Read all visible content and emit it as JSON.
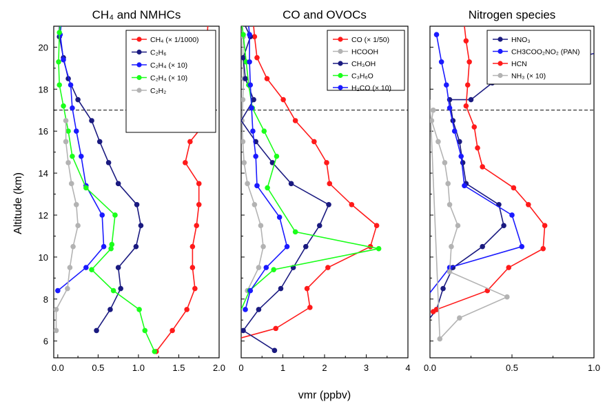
{
  "figure": {
    "ylabel": "Altitude (km)",
    "xlabel": "vmr (ppbv)"
  },
  "chart_data": [
    {
      "type": "line",
      "title": "CH₄ and NMHCs",
      "xlim": [
        -0.05,
        2.0
      ],
      "ylim": [
        5.2,
        21.0
      ],
      "xticks": [
        "0.0",
        "0.5",
        "1.0",
        "1.5",
        "2.0"
      ],
      "xtick_values": [
        0.0,
        0.5,
        1.0,
        1.5,
        2.0
      ],
      "yticks": [
        "6",
        "8",
        "10",
        "12",
        "14",
        "16",
        "18",
        "20"
      ],
      "ytick_values": [
        6,
        8,
        10,
        12,
        14,
        16,
        18,
        20
      ],
      "reference_line_y": 17.0,
      "legend_position": "top-right",
      "series": [
        {
          "name": "CH₄ (× 1/1000)",
          "color": "#ff1a1a",
          "points": [
            [
              1.22,
              5.5
            ],
            [
              1.42,
              6.5
            ],
            [
              1.6,
              7.5
            ],
            [
              1.7,
              8.5
            ],
            [
              1.67,
              9.5
            ],
            [
              1.67,
              10.5
            ],
            [
              1.72,
              11.5
            ],
            [
              1.75,
              12.5
            ],
            [
              1.75,
              13.5
            ],
            [
              1.58,
              14.5
            ],
            [
              1.64,
              15.5
            ],
            [
              1.85,
              16.5
            ],
            [
              1.8,
              17.5
            ],
            [
              1.86,
              21.0
            ]
          ]
        },
        {
          "name": "C₂H₆",
          "color": "#1a1a80",
          "points": [
            [
              0.48,
              6.5
            ],
            [
              0.65,
              7.5
            ],
            [
              0.78,
              8.5
            ],
            [
              0.75,
              9.5
            ],
            [
              0.97,
              10.5
            ],
            [
              1.03,
              11.5
            ],
            [
              0.98,
              12.5
            ],
            [
              0.75,
              13.5
            ],
            [
              0.63,
              14.5
            ],
            [
              0.52,
              15.5
            ],
            [
              0.42,
              16.5
            ],
            [
              0.25,
              17.5
            ],
            [
              0.13,
              18.5
            ],
            [
              0.07,
              19.5
            ],
            [
              0.02,
              20.5
            ],
            [
              0.02,
              21.0
            ]
          ]
        },
        {
          "name": "C₂H₄ (× 10)",
          "color": "#1a1aff",
          "points": [
            [
              0.0,
              8.4
            ],
            [
              0.35,
              9.5
            ],
            [
              0.57,
              10.5
            ],
            [
              0.55,
              12.0
            ],
            [
              0.35,
              13.4
            ],
            [
              0.29,
              14.8
            ],
            [
              0.23,
              16.0
            ],
            [
              0.18,
              17.1
            ],
            [
              0.16,
              18.2
            ],
            [
              0.07,
              19.4
            ],
            [
              0.03,
              20.6
            ],
            [
              0.04,
              21.0
            ]
          ]
        },
        {
          "name": "C₂H₄ (× 10)",
          "color": "#1aff1a",
          "points": [
            [
              1.2,
              5.5
            ],
            [
              1.08,
              6.5
            ],
            [
              1.01,
              7.5
            ],
            [
              0.69,
              8.4
            ],
            [
              0.42,
              9.4
            ],
            [
              0.66,
              10.4
            ],
            [
              0.67,
              10.6
            ],
            [
              0.71,
              12.0
            ],
            [
              0.35,
              13.3
            ],
            [
              0.18,
              14.8
            ],
            [
              0.13,
              16.0
            ],
            [
              0.07,
              17.2
            ],
            [
              0.02,
              18.2
            ],
            [
              0.01,
              19.3
            ],
            [
              0.02,
              20.7
            ],
            [
              0.03,
              21.0
            ]
          ]
        },
        {
          "name": "C₂H₂",
          "color": "#b3b3b3",
          "points": [
            [
              -0.02,
              6.5
            ],
            [
              -0.02,
              7.5
            ],
            [
              0.12,
              8.5
            ],
            [
              0.15,
              9.5
            ],
            [
              0.19,
              10.5
            ],
            [
              0.25,
              11.5
            ],
            [
              0.23,
              12.5
            ],
            [
              0.17,
              13.5
            ],
            [
              0.13,
              14.5
            ],
            [
              0.1,
              15.5
            ],
            [
              0.1,
              16.5
            ]
          ]
        }
      ]
    },
    {
      "type": "line",
      "title": "CO and OVOCs",
      "xlim": [
        0.0,
        4.0
      ],
      "ylim": [
        5.2,
        21.0
      ],
      "xticks": [
        "0",
        "1",
        "2",
        "3",
        "4"
      ],
      "xtick_values": [
        0,
        1,
        2,
        3,
        4
      ],
      "yticks": [
        "6",
        "8",
        "10",
        "12",
        "14",
        "16",
        "18",
        "20"
      ],
      "ytick_values": [
        6,
        8,
        10,
        12,
        14,
        16,
        18,
        20
      ],
      "reference_line_y": 17.0,
      "legend_position": "top-right",
      "series": [
        {
          "name": "CO (× 1/50)",
          "color": "#ff1a1a",
          "points": [
            [
              0.0,
              6.15
            ],
            [
              0.83,
              6.6
            ],
            [
              1.65,
              7.6
            ],
            [
              1.58,
              8.5
            ],
            [
              2.08,
              9.5
            ],
            [
              3.1,
              10.5
            ],
            [
              3.25,
              11.5
            ],
            [
              2.65,
              12.5
            ],
            [
              2.12,
              13.5
            ],
            [
              2.05,
              14.5
            ],
            [
              1.75,
              15.5
            ],
            [
              1.3,
              16.5
            ],
            [
              1.01,
              17.5
            ],
            [
              0.62,
              18.5
            ],
            [
              0.38,
              19.5
            ],
            [
              0.32,
              20.5
            ],
            [
              0.3,
              21.0
            ]
          ]
        },
        {
          "name": "HCOOH",
          "color": "#b3b3b3",
          "points": [
            [
              0.15,
              8.4
            ],
            [
              0.42,
              9.5
            ],
            [
              0.53,
              10.5
            ],
            [
              0.47,
              11.5
            ],
            [
              0.32,
              12.5
            ],
            [
              0.15,
              13.5
            ],
            [
              0.07,
              14.5
            ],
            [
              0.04,
              15.5
            ],
            [
              0.02,
              16.5
            ],
            [
              0.04,
              17.5
            ],
            [
              0.06,
              18.5
            ],
            [
              0.04,
              19.5
            ],
            [
              0.05,
              20.5
            ],
            [
              0.03,
              21.0
            ]
          ]
        },
        {
          "name": "CH₃OH",
          "color": "#1a1a80",
          "points": [
            [
              0.8,
              5.55
            ],
            [
              0.05,
              6.5
            ],
            [
              0.42,
              7.5
            ],
            [
              0.95,
              8.5
            ],
            [
              1.25,
              9.5
            ],
            [
              1.55,
              10.5
            ],
            [
              1.88,
              11.5
            ],
            [
              2.1,
              12.5
            ],
            [
              1.2,
              13.5
            ],
            [
              0.75,
              14.5
            ],
            [
              0.35,
              15.5
            ],
            [
              0.0,
              16.5
            ],
            [
              0.3,
              17.5
            ],
            [
              0.1,
              18.5
            ],
            [
              0.05,
              19.5
            ],
            [
              0.22,
              20.5
            ],
            [
              0.1,
              21.0
            ]
          ]
        },
        {
          "name": "C₃H₆O",
          "color": "#1aff1a",
          "points": [
            [
              0.0,
              7.5
            ],
            [
              0.2,
              8.4
            ],
            [
              0.78,
              9.4
            ],
            [
              3.3,
              10.4
            ],
            [
              1.3,
              11.2
            ],
            [
              0.63,
              13.3
            ],
            [
              0.85,
              14.8
            ],
            [
              0.55,
              16.0
            ],
            [
              0.27,
              17.1
            ],
            [
              0.18,
              18.2
            ],
            [
              0.12,
              19.3
            ],
            [
              0.05,
              20.6
            ],
            [
              0.02,
              21.0
            ]
          ]
        },
        {
          "name": "H₂CO (× 10)",
          "color": "#1a1aff",
          "points": [
            [
              0.1,
              7.5
            ],
            [
              0.22,
              8.4
            ],
            [
              0.6,
              9.5
            ],
            [
              1.1,
              10.5
            ],
            [
              0.92,
              11.9
            ],
            [
              0.38,
              13.4
            ],
            [
              0.35,
              14.8
            ],
            [
              0.28,
              16.0
            ],
            [
              0.25,
              17.1
            ],
            [
              0.22,
              18.2
            ],
            [
              0.2,
              19.3
            ],
            [
              0.2,
              20.6
            ],
            [
              0.18,
              21.0
            ]
          ]
        }
      ]
    },
    {
      "type": "line",
      "title": "Nitrogen species",
      "xlim": [
        0.0,
        1.0
      ],
      "ylim": [
        5.2,
        21.0
      ],
      "xticks": [
        "0.0",
        "0.5",
        "1.0"
      ],
      "xtick_values": [
        0.0,
        0.5,
        1.0
      ],
      "yticks": [
        "6",
        "8",
        "10",
        "12",
        "14",
        "16",
        "18",
        "20"
      ],
      "ytick_values": [
        6,
        8,
        10,
        12,
        14,
        16,
        18,
        20
      ],
      "reference_line_y": 17.0,
      "legend_position": "top-right",
      "series": [
        {
          "name": "HNO₃",
          "color": "#1a1a80",
          "points": [
            [
              0.0,
              7.1
            ],
            [
              0.04,
              7.5
            ],
            [
              0.08,
              8.5
            ],
            [
              0.14,
              9.5
            ],
            [
              0.32,
              10.5
            ],
            [
              0.45,
              11.5
            ],
            [
              0.42,
              12.5
            ],
            [
              0.22,
              13.5
            ],
            [
              0.2,
              14.5
            ],
            [
              0.18,
              15.5
            ],
            [
              0.14,
              16.5
            ],
            [
              0.12,
              17.5
            ],
            [
              0.25,
              17.5
            ],
            [
              0.38,
              18.3
            ],
            [
              0.62,
              19.0
            ],
            [
              1.0,
              19.7
            ]
          ]
        },
        {
          "name": "CH3COO₂NO₂ (PAN)",
          "color": "#1a1aff",
          "points": [
            [
              0.0,
              8.3
            ],
            [
              0.12,
              9.5
            ],
            [
              0.56,
              10.5
            ],
            [
              0.5,
              12.0
            ],
            [
              0.21,
              13.4
            ],
            [
              0.19,
              14.8
            ],
            [
              0.15,
              16.0
            ],
            [
              0.12,
              17.1
            ],
            [
              0.1,
              18.2
            ],
            [
              0.07,
              19.3
            ],
            [
              0.04,
              20.6
            ]
          ]
        },
        {
          "name": "HCN",
          "color": "#ff1a1a",
          "points": [
            [
              0.02,
              7.4
            ],
            [
              0.04,
              7.5
            ],
            [
              0.35,
              8.4
            ],
            [
              0.48,
              9.5
            ],
            [
              0.69,
              10.4
            ],
            [
              0.7,
              11.5
            ],
            [
              0.6,
              12.5
            ],
            [
              0.51,
              13.3
            ],
            [
              0.32,
              14.3
            ],
            [
              0.29,
              15.2
            ],
            [
              0.27,
              16.2
            ],
            [
              0.22,
              17.2
            ],
            [
              0.23,
              18.2
            ],
            [
              0.24,
              19.3
            ],
            [
              0.22,
              20.3
            ],
            [
              0.21,
              21.0
            ]
          ]
        },
        {
          "name": "NH₃ (× 10)",
          "color": "#b3b3b3",
          "points": [
            [
              0.0,
              17.5
            ],
            [
              0.06,
              6.1
            ],
            [
              0.18,
              7.1
            ],
            [
              0.47,
              8.1
            ],
            [
              0.12,
              9.3
            ],
            [
              0.13,
              10.5
            ],
            [
              0.17,
              11.5
            ],
            [
              0.12,
              12.5
            ],
            [
              0.11,
              13.5
            ],
            [
              0.09,
              14.5
            ],
            [
              0.05,
              15.5
            ],
            [
              0.01,
              16.5
            ],
            [
              0.02,
              17.0
            ]
          ]
        }
      ]
    }
  ]
}
